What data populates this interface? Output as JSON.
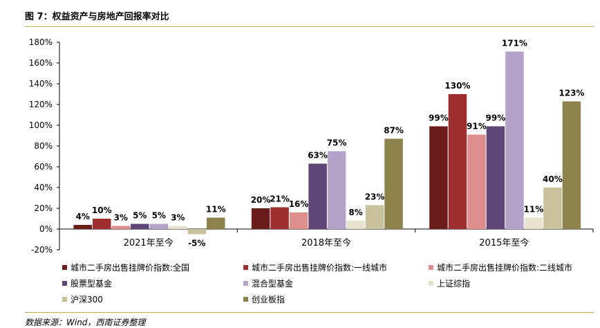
{
  "figure_title": "图 7：权益资产与房地产回报率对比",
  "source": "数据来源：Wind，西南证券整理",
  "chart_data": {
    "type": "bar",
    "title": "",
    "xlabel": "",
    "ylabel": "",
    "ylim": [
      -20,
      180
    ],
    "yticks": [
      -20,
      0,
      20,
      40,
      60,
      80,
      100,
      120,
      140,
      160,
      180
    ],
    "ytick_labels": [
      "-20%",
      "0%",
      "20%",
      "40%",
      "60%",
      "80%",
      "100%",
      "120%",
      "140%",
      "160%",
      "180%"
    ],
    "grid": false,
    "legend_position": "bottom",
    "categories": [
      "2021年至今",
      "2018年至今",
      "2015年至今"
    ],
    "series": [
      {
        "name": "城市二手房出售挂牌价指数:全国",
        "color": "#6b1c1c",
        "values": [
          4,
          20,
          99
        ],
        "labels": [
          "4%",
          "20%",
          "99%"
        ]
      },
      {
        "name": "城市二手房出售挂牌价指数:一线城市",
        "color": "#9e2f31",
        "values": [
          10,
          21,
          130
        ],
        "labels": [
          "10%",
          "21%",
          "130%"
        ]
      },
      {
        "name": "城市二手房出售挂牌价指数:二线城市",
        "color": "#de8e8c",
        "values": [
          3,
          16,
          91
        ],
        "labels": [
          "3%",
          "16%",
          "91%"
        ]
      },
      {
        "name": "股票型基金",
        "color": "#5e4677",
        "values": [
          5,
          63,
          99
        ],
        "labels": [
          "5%",
          "63%",
          "99%"
        ]
      },
      {
        "name": "混合型基金",
        "color": "#b5a2c9",
        "values": [
          5,
          75,
          171
        ],
        "labels": [
          "5%",
          "75%",
          "171%"
        ]
      },
      {
        "name": "上证综指",
        "color": "#e6e2d0",
        "values": [
          3,
          8,
          11
        ],
        "labels": [
          "3%",
          "8%",
          "11%"
        ]
      },
      {
        "name": "沪深300",
        "color": "#c9c09c",
        "values": [
          -5,
          23,
          40
        ],
        "labels": [
          "-5%",
          "23%",
          "40%"
        ]
      },
      {
        "name": "创业板指",
        "color": "#8c834d",
        "values": [
          11,
          87,
          123
        ],
        "labels": [
          "11%",
          "87%",
          "123%"
        ]
      }
    ]
  }
}
